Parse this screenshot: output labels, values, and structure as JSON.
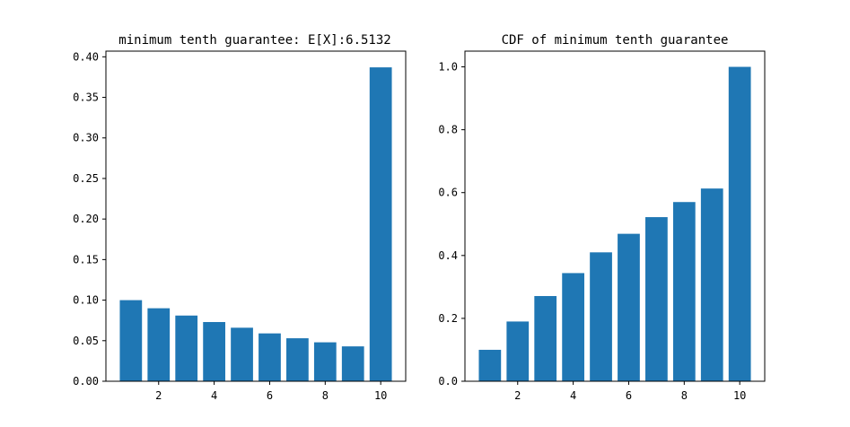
{
  "chart_data": [
    {
      "type": "bar",
      "title": "minimum tenth guarantee: E[X]:6.5132",
      "xlabel": "",
      "ylabel": "",
      "x": [
        1,
        2,
        3,
        4,
        5,
        6,
        7,
        8,
        9,
        10
      ],
      "values": [
        0.1,
        0.09,
        0.081,
        0.073,
        0.066,
        0.059,
        0.053,
        0.048,
        0.043,
        0.387
      ],
      "color": "#1f77b4",
      "xticks": [
        2,
        4,
        6,
        8,
        10
      ],
      "xtick_labels": [
        "2",
        "4",
        "6",
        "8",
        "10"
      ],
      "xlim": [
        0.1,
        10.9
      ],
      "yticks": [
        0.0,
        0.05,
        0.1,
        0.15,
        0.2,
        0.25,
        0.3,
        0.35,
        0.4
      ],
      "ytick_labels": [
        "0.00",
        "0.05",
        "0.10",
        "0.15",
        "0.20",
        "0.25",
        "0.30",
        "0.35",
        "0.40"
      ],
      "ylim": [
        0,
        0.407
      ],
      "grid": false
    },
    {
      "type": "bar",
      "title": "CDF of minimum tenth guarantee",
      "xlabel": "",
      "ylabel": "",
      "x": [
        1,
        2,
        3,
        4,
        5,
        6,
        7,
        8,
        9,
        10
      ],
      "values": [
        0.1,
        0.19,
        0.271,
        0.344,
        0.41,
        0.469,
        0.522,
        0.57,
        0.613,
        1.0
      ],
      "color": "#1f77b4",
      "xticks": [
        2,
        4,
        6,
        8,
        10
      ],
      "xtick_labels": [
        "2",
        "4",
        "6",
        "8",
        "10"
      ],
      "xlim": [
        0.1,
        10.9
      ],
      "yticks": [
        0.0,
        0.2,
        0.4,
        0.6,
        0.8,
        1.0
      ],
      "ytick_labels": [
        "0.0",
        "0.2",
        "0.4",
        "0.6",
        "0.8",
        "1.0"
      ],
      "ylim": [
        0,
        1.05
      ],
      "grid": false
    }
  ]
}
